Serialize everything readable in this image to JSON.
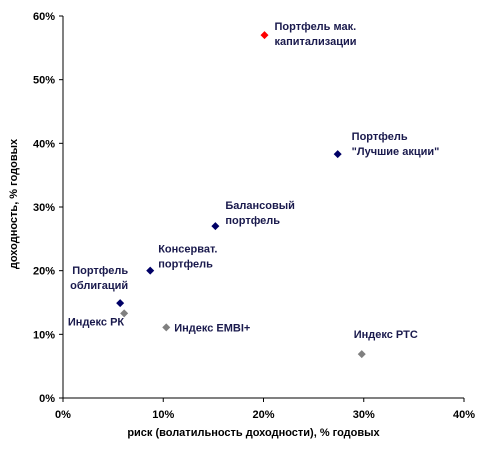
{
  "chart_data": {
    "type": "scatter",
    "xlabel": "риск (волатильность доходности), % годовых",
    "ylabel": "доходность, % годовых",
    "xlim": [
      0,
      40
    ],
    "ylim": [
      0,
      60
    ],
    "x_ticks": [
      "0%",
      "10%",
      "20%",
      "30%",
      "40%"
    ],
    "y_ticks": [
      "0%",
      "10%",
      "20%",
      "30%",
      "40%",
      "50%",
      "60%"
    ],
    "grid": false,
    "points": [
      {
        "label": [
          "Портфель мак.",
          "капитализации"
        ],
        "x": 20.1,
        "y": 57.0,
        "color": "#ff0000"
      },
      {
        "label": [
          "Портфель",
          "\"Лучшие акции\""
        ],
        "x": 27.4,
        "y": 38.3,
        "color": "#000066"
      },
      {
        "label": [
          "Балансовый",
          "портфель"
        ],
        "x": 15.2,
        "y": 27.0,
        "color": "#000066"
      },
      {
        "label": [
          "Консерват.",
          "портфель"
        ],
        "x": 8.7,
        "y": 20.0,
        "color": "#000066"
      },
      {
        "label": [
          "Портфель",
          "облигаций"
        ],
        "x": 5.7,
        "y": 14.9,
        "color": "#000066"
      },
      {
        "label": [
          "Индекс РК"
        ],
        "x": 6.1,
        "y": 13.3,
        "color": "#808080"
      },
      {
        "label": [
          "Индекс EMBI+"
        ],
        "x": 10.3,
        "y": 11.1,
        "color": "#808080"
      },
      {
        "label": [
          "Индекс РТС"
        ],
        "x": 29.8,
        "y": 6.9,
        "color": "#808080"
      }
    ]
  }
}
